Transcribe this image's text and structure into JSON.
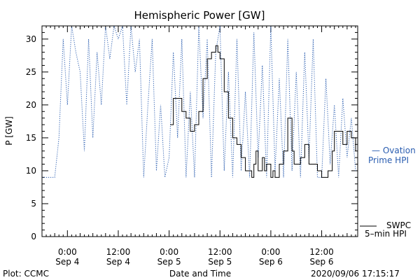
{
  "chart_data": {
    "type": "line",
    "title": "Hemispheric Power [GW]",
    "xlabel": "Date and Time",
    "ylabel": "P [GW]",
    "ylim": [
      0,
      32
    ],
    "yticks": [
      0,
      5,
      10,
      15,
      20,
      25,
      30
    ],
    "xlim": [
      "2020-09-03 18:00",
      "2020-09-06 20:30"
    ],
    "xticks": [
      {
        "t": "2020-09-04 00:00",
        "time": "0:00",
        "date": "Sep 4"
      },
      {
        "t": "2020-09-04 12:00",
        "time": "12:00",
        "date": "Sep 4"
      },
      {
        "t": "2020-09-05 00:00",
        "time": "0:00",
        "date": "Sep 5"
      },
      {
        "t": "2020-09-05 12:00",
        "time": "12:00",
        "date": "Sep 5"
      },
      {
        "t": "2020-09-06 00:00",
        "time": "0:00",
        "date": "Sep 6"
      },
      {
        "t": "2020-09-06 12:00",
        "time": "12:00",
        "date": "Sep 6"
      }
    ],
    "series": [
      {
        "name": "SWPC 5-min HPI",
        "color": "#000000",
        "style": "solid",
        "x": [
          "2020-09-05 00:15",
          "2020-09-05 01:00",
          "2020-09-05 02:00",
          "2020-09-05 03:00",
          "2020-09-05 04:00",
          "2020-09-05 05:00",
          "2020-09-05 06:00",
          "2020-09-05 07:00",
          "2020-09-05 08:00",
          "2020-09-05 09:00",
          "2020-09-05 10:00",
          "2020-09-05 11:00",
          "2020-09-05 11:30",
          "2020-09-05 12:00",
          "2020-09-05 13:00",
          "2020-09-05 14:00",
          "2020-09-05 15:00",
          "2020-09-05 16:00",
          "2020-09-05 17:00",
          "2020-09-05 18:00",
          "2020-09-05 18:30",
          "2020-09-05 19:30",
          "2020-09-05 20:00",
          "2020-09-05 20:30",
          "2020-09-05 21:00",
          "2020-09-05 22:00",
          "2020-09-05 22:30",
          "2020-09-05 23:00",
          "2020-09-06 00:00",
          "2020-09-06 00:30",
          "2020-09-06 01:00",
          "2020-09-06 02:00",
          "2020-09-06 03:00",
          "2020-09-06 04:00",
          "2020-09-06 05:00",
          "2020-09-06 05:30",
          "2020-09-06 06:00",
          "2020-09-06 07:00",
          "2020-09-06 08:00",
          "2020-09-06 09:00",
          "2020-09-06 10:00",
          "2020-09-06 11:00",
          "2020-09-06 12:00",
          "2020-09-06 13:00",
          "2020-09-06 13:30",
          "2020-09-06 14:00",
          "2020-09-06 14:30",
          "2020-09-06 15:00",
          "2020-09-06 16:00",
          "2020-09-06 17:00",
          "2020-09-06 18:00",
          "2020-09-06 19:00",
          "2020-09-06 20:00"
        ],
        "values": [
          17,
          21,
          21,
          19,
          18,
          16,
          17,
          19,
          24,
          27,
          28,
          29,
          28,
          27,
          22,
          18,
          15,
          14,
          12,
          10,
          10,
          9,
          11,
          13,
          10,
          12,
          10,
          11,
          9,
          10,
          9,
          11,
          13,
          18,
          13,
          11,
          11,
          12,
          14,
          11,
          11,
          10,
          9,
          9,
          10,
          10,
          13,
          16,
          16,
          14,
          16,
          15,
          13
        ]
      },
      {
        "name": "Ovation Prime HPI",
        "color": "#2a5db0",
        "style": "dotted",
        "x": [
          "2020-09-03 18:00",
          "2020-09-03 21:00",
          "2020-09-03 22:00",
          "2020-09-03 23:00",
          "2020-09-04 00:00",
          "2020-09-04 01:00",
          "2020-09-04 02:00",
          "2020-09-04 03:00",
          "2020-09-04 04:00",
          "2020-09-04 05:00",
          "2020-09-04 06:00",
          "2020-09-04 07:00",
          "2020-09-04 08:00",
          "2020-09-04 09:00",
          "2020-09-04 10:00",
          "2020-09-04 11:00",
          "2020-09-04 12:00",
          "2020-09-04 13:00",
          "2020-09-04 14:00",
          "2020-09-04 15:00",
          "2020-09-04 16:00",
          "2020-09-04 17:00",
          "2020-09-04 18:00",
          "2020-09-04 19:00",
          "2020-09-04 20:00",
          "2020-09-04 21:00",
          "2020-09-04 22:00",
          "2020-09-04 23:00",
          "2020-09-05 00:00",
          "2020-09-05 01:00",
          "2020-09-05 02:00",
          "2020-09-05 03:00",
          "2020-09-05 04:00",
          "2020-09-05 05:00",
          "2020-09-05 06:00",
          "2020-09-05 07:00",
          "2020-09-05 08:00",
          "2020-09-05 09:00",
          "2020-09-05 10:00",
          "2020-09-05 11:00",
          "2020-09-05 12:00",
          "2020-09-05 13:00",
          "2020-09-05 14:00",
          "2020-09-05 15:00",
          "2020-09-05 16:00",
          "2020-09-05 17:00",
          "2020-09-05 18:00",
          "2020-09-05 19:00",
          "2020-09-05 20:00",
          "2020-09-05 21:00",
          "2020-09-05 22:00",
          "2020-09-05 23:00",
          "2020-09-06 00:00",
          "2020-09-06 01:00",
          "2020-09-06 02:00",
          "2020-09-06 03:00",
          "2020-09-06 04:00",
          "2020-09-06 05:00",
          "2020-09-06 06:00",
          "2020-09-06 07:00",
          "2020-09-06 08:00",
          "2020-09-06 09:00",
          "2020-09-06 10:00",
          "2020-09-06 11:00",
          "2020-09-06 12:00",
          "2020-09-06 13:00",
          "2020-09-06 14:00",
          "2020-09-06 15:00",
          "2020-09-06 16:00",
          "2020-09-06 17:00",
          "2020-09-06 18:00",
          "2020-09-06 19:00",
          "2020-09-06 20:00"
        ],
        "values": [
          9,
          9,
          15,
          30,
          20,
          32,
          28,
          25,
          13,
          30,
          15,
          28,
          20,
          32,
          27,
          32,
          30,
          32,
          20,
          32,
          25,
          30,
          9,
          20,
          30,
          10,
          20,
          9,
          12,
          28,
          15,
          30,
          9,
          22,
          9,
          32,
          18,
          30,
          9,
          28,
          32,
          10,
          25,
          9,
          30,
          10,
          22,
          9,
          31,
          12,
          26,
          9,
          32,
          10,
          24,
          9,
          30,
          10,
          25,
          9,
          28,
          12,
          30,
          9,
          9,
          24,
          11,
          20,
          9,
          21,
          12,
          18,
          10
        ]
      }
    ],
    "legend": "right",
    "legend_labels": {
      "ovation_line1": "— Ovation",
      "ovation_line2": "Prime HPI",
      "swpc_line1": "SWPC",
      "swpc_line2": "5–min HPI"
    },
    "footer": {
      "left": "Plot: CCMC",
      "right": "2020/09/06 17:15:17"
    }
  }
}
